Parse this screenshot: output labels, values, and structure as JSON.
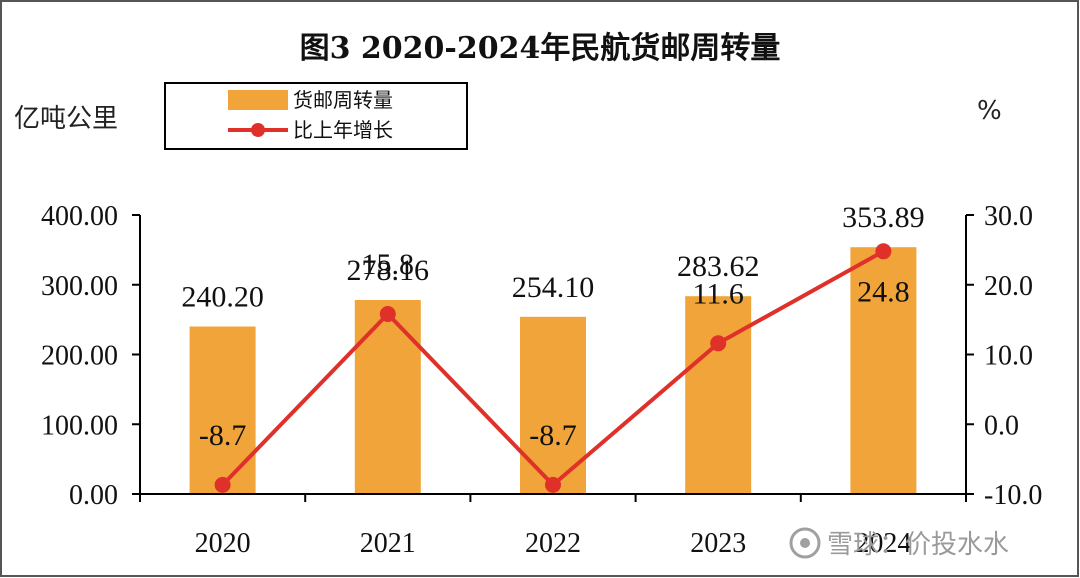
{
  "colors": {
    "bar": "#F0A43A",
    "line": "#E0302A",
    "marker": "#E0302A",
    "axis": "#000000",
    "watermark": "#9a9a9a"
  },
  "watermark": {
    "text": "雪球：价投水水"
  },
  "chart_data": {
    "type": "bar",
    "title": "图3 2020-2024年民航货邮周转量",
    "ylabel": "亿吨公里",
    "y2label": "%",
    "categories": [
      "2020",
      "2021",
      "2022",
      "2023",
      "2024"
    ],
    "ylim": [
      0,
      400
    ],
    "y2lim": [
      -10,
      30
    ],
    "yticks": [
      "0.00",
      "100.00",
      "200.00",
      "300.00",
      "400.00"
    ],
    "y2ticks": [
      "-10.0",
      "0.0",
      "10.0",
      "20.0",
      "30.0"
    ],
    "grid": false,
    "legend_position": "top-left",
    "series": [
      {
        "name": "货邮周转量",
        "type": "bar",
        "axis": "left",
        "values": [
          240.2,
          278.16,
          254.1,
          283.62,
          353.89
        ],
        "labels": [
          "240.20",
          "278.16",
          "254.10",
          "283.62",
          "353.89"
        ]
      },
      {
        "name": "比上年增长",
        "type": "line",
        "axis": "right",
        "values": [
          -8.7,
          15.8,
          -8.7,
          11.6,
          24.8
        ],
        "labels": [
          "-8.7",
          "15.8",
          "-8.7",
          "11.6",
          "24.8"
        ]
      }
    ]
  }
}
